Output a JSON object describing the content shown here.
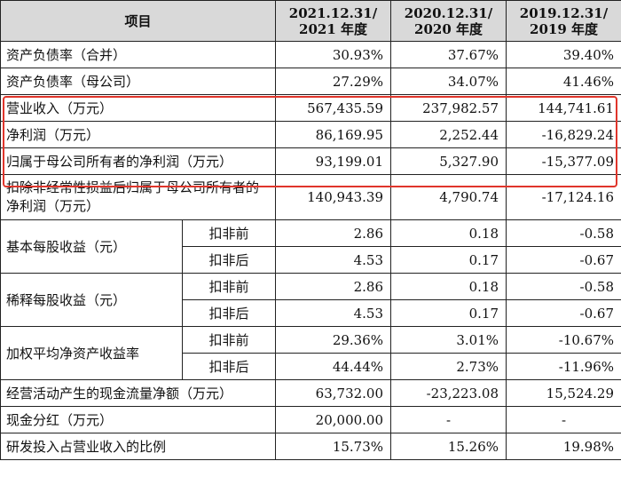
{
  "header": {
    "item": "项目",
    "col1_line1": "2021.12.31/",
    "col1_line2": "2021 年度",
    "col2_line1": "2020.12.31/",
    "col2_line2": "2020 年度",
    "col3_line1": "2019.12.31/",
    "col3_line2": "2019 年度"
  },
  "rows": [
    {
      "label": "资产负债率（合并）",
      "v2021": "30.93%",
      "v2020": "37.67%",
      "v2019": "39.40%"
    },
    {
      "label": "资产负债率（母公司）",
      "v2021": "27.29%",
      "v2020": "34.07%",
      "v2019": "41.46%"
    },
    {
      "label": "营业收入（万元）",
      "v2021": "567,435.59",
      "v2020": "237,982.57",
      "v2019": "144,741.61"
    },
    {
      "label": "净利润（万元）",
      "v2021": "86,169.95",
      "v2020": "2,252.44",
      "v2019": "-16,829.24"
    },
    {
      "label": "归属于母公司所有者的净利润（万元）",
      "v2021": "93,199.01",
      "v2020": "5,327.90",
      "v2019": "-15,377.09"
    },
    {
      "label": "扣除非经常性损益后归属于母公司所有者的净利润（万元）",
      "v2021": "140,943.39",
      "v2020": "4,790.74",
      "v2019": "-17,124.16"
    }
  ],
  "groups": [
    {
      "label": "基本每股收益（元）",
      "sub": [
        {
          "label": "扣非前",
          "v2021": "2.86",
          "v2020": "0.18",
          "v2019": "-0.58"
        },
        {
          "label": "扣非后",
          "v2021": "4.53",
          "v2020": "0.17",
          "v2019": "-0.67"
        }
      ]
    },
    {
      "label": "稀释每股收益（元）",
      "sub": [
        {
          "label": "扣非前",
          "v2021": "2.86",
          "v2020": "0.18",
          "v2019": "-0.58"
        },
        {
          "label": "扣非后",
          "v2021": "4.53",
          "v2020": "0.17",
          "v2019": "-0.67"
        }
      ]
    },
    {
      "label": "加权平均净资产收益率",
      "sub": [
        {
          "label": "扣非前",
          "v2021": "29.36%",
          "v2020": "3.01%",
          "v2019": "-10.67%"
        },
        {
          "label": "扣非后",
          "v2021": "44.44%",
          "v2020": "2.73%",
          "v2019": "-11.96%"
        }
      ]
    }
  ],
  "tail_rows": [
    {
      "label": "经营活动产生的现金流量净额（万元）",
      "v2021": "63,732.00",
      "v2020": "-23,223.08",
      "v2019": "15,524.29"
    },
    {
      "label": "现金分红（万元）",
      "v2021": "20,000.00",
      "v2020": "-",
      "v2019": "-"
    },
    {
      "label": "研发投入占营业收入的比例",
      "v2021": "15.73%",
      "v2020": "15.26%",
      "v2019": "19.98%"
    }
  ],
  "highlight_color": "#e0352b"
}
